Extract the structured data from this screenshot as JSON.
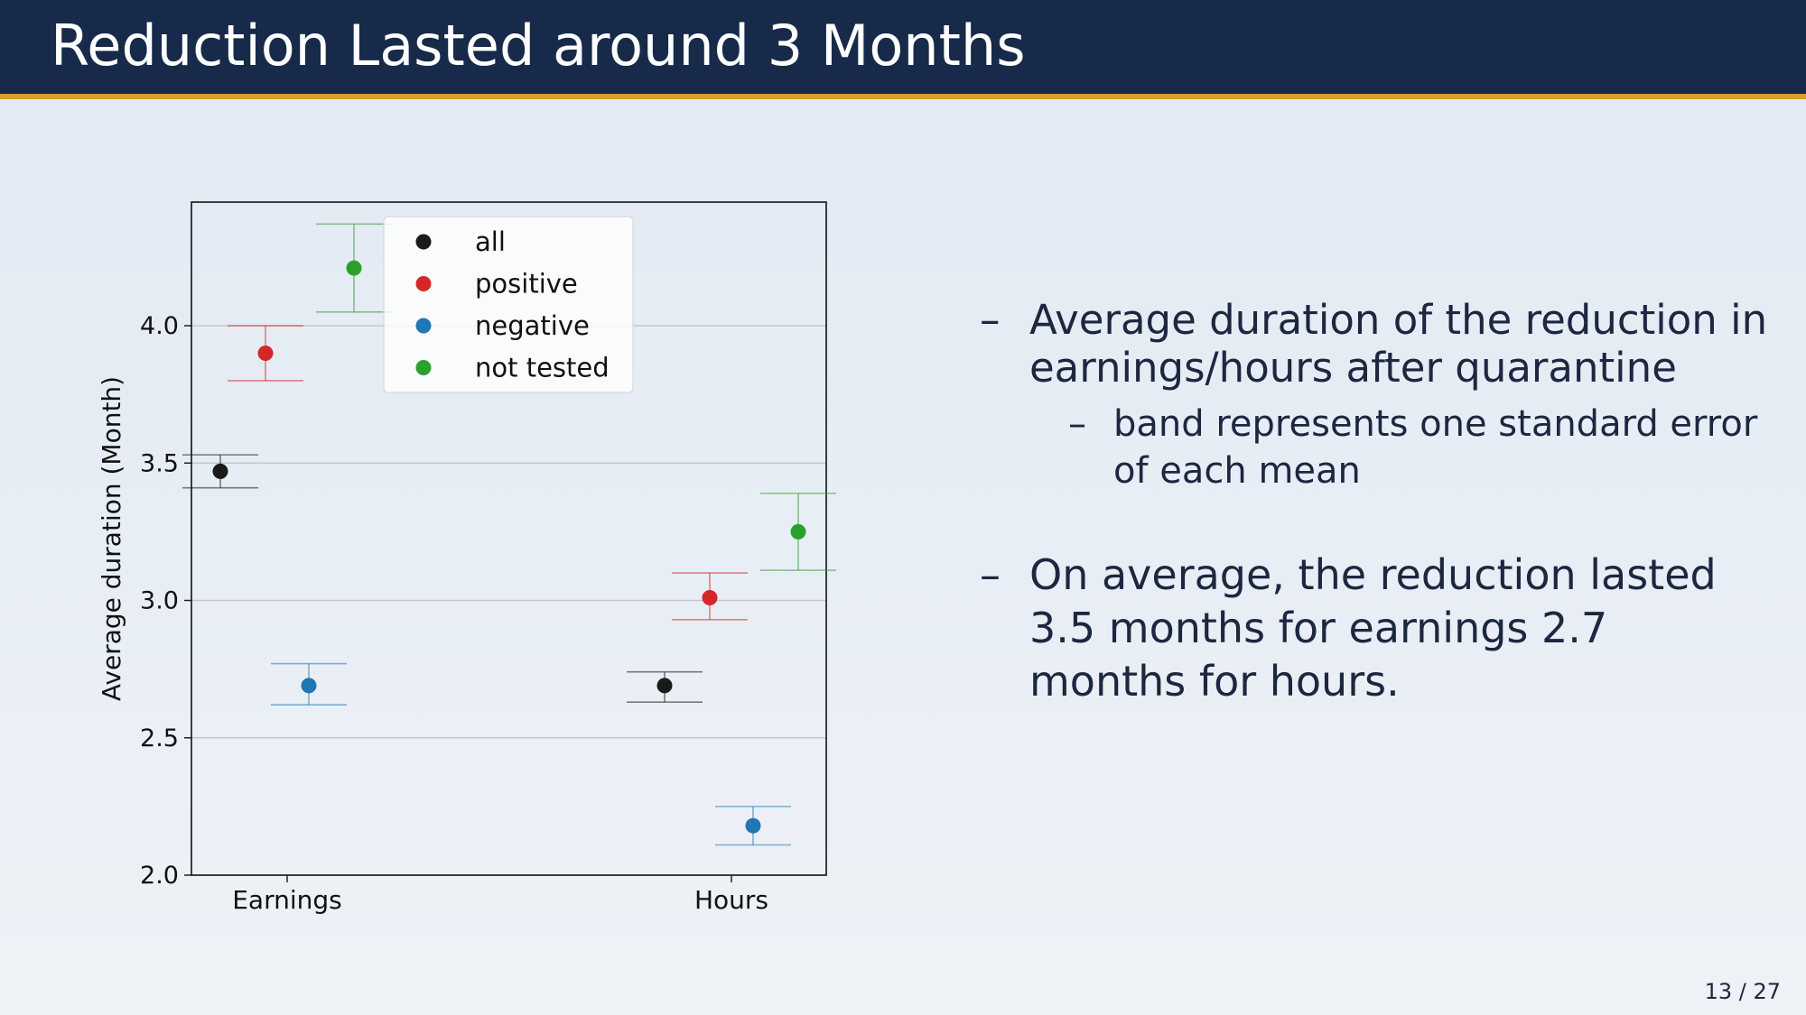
{
  "slide": {
    "title": "Reduction Lasted around 3 Months",
    "page_number": "13 / 27"
  },
  "bullets": [
    {
      "dash": "–",
      "text": "Average duration of the reduction in earnings/hours after quarantine",
      "sub": {
        "dash": "–",
        "text": "band represents one standard error of each mean"
      }
    },
    {
      "dash": "–",
      "text": "On average, the reduction lasted 3.5 months for earnings 2.7 months for hours."
    }
  ],
  "chart_data": {
    "type": "scatter",
    "subtype": "point-with-error-bars",
    "categories": [
      "Earnings",
      "Hours"
    ],
    "ylabel": "Average duration (Month)",
    "xlabel": "",
    "ylim": [
      2.0,
      4.45
    ],
    "yticks": [
      "2.0",
      "2.5",
      "3.0",
      "3.5",
      "4.0"
    ],
    "grid": "horizontal",
    "legend_position": "top-center",
    "series": [
      {
        "name": "all",
        "color": "#1a1a1a",
        "values": [
          3.47,
          2.69
        ],
        "lower": [
          3.41,
          2.63
        ],
        "upper": [
          3.53,
          2.74
        ]
      },
      {
        "name": "positive",
        "color": "#d62728",
        "values": [
          3.9,
          3.01
        ],
        "lower": [
          3.8,
          2.93
        ],
        "upper": [
          4.0,
          3.1
        ]
      },
      {
        "name": "negative",
        "color": "#1f77b4",
        "values": [
          2.69,
          2.18
        ],
        "lower": [
          2.62,
          2.11
        ],
        "upper": [
          2.77,
          2.25
        ]
      },
      {
        "name": "not tested",
        "color": "#2ca02c",
        "values": [
          4.21,
          3.25
        ],
        "lower": [
          4.05,
          3.11
        ],
        "upper": [
          4.37,
          3.39
        ]
      }
    ]
  }
}
